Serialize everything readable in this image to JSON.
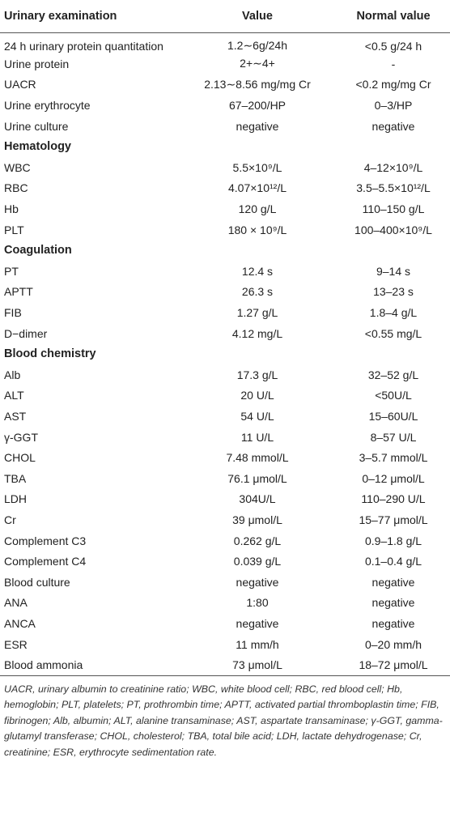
{
  "table": {
    "columns": [
      "Urinary examination",
      "Value",
      "Normal value"
    ],
    "rows": [
      [
        "24 h urinary protein quantitation",
        "1.2∼6g/24h",
        "<0.5 g/24 h"
      ],
      [
        "Urine protein",
        "2+∼4+",
        "-"
      ],
      [
        "UACR",
        "2.13∼8.56 mg/mg Cr",
        "<0.2 mg/mg Cr"
      ],
      [
        "Urine erythrocyte",
        "67–200/HP",
        "0–3/HP"
      ],
      [
        "Urine culture",
        "negative",
        "negative"
      ],
      [
        "Hematology"
      ],
      [
        "WBC",
        "5.5×10⁹/L",
        "4–12×10⁹/L"
      ],
      [
        "RBC",
        "4.07×10¹²/L",
        "3.5–5.5×10¹²/L"
      ],
      [
        "Hb",
        "120 g/L",
        "110–150 g/L"
      ],
      [
        "PLT",
        "180 × 10⁹/L",
        "100–400×10⁹/L"
      ],
      [
        "Coagulation"
      ],
      [
        "PT",
        "12.4 s",
        "9–14 s"
      ],
      [
        "APTT",
        "26.3 s",
        "13–23 s"
      ],
      [
        "FIB",
        "1.27 g/L",
        "1.8–4 g/L"
      ],
      [
        "D−dimer",
        "4.12 mg/L",
        "<0.55 mg/L"
      ],
      [
        "Blood chemistry"
      ],
      [
        "Alb",
        "17.3 g/L",
        "32–52 g/L"
      ],
      [
        "ALT",
        "20 U/L",
        "<50U/L"
      ],
      [
        "AST",
        "54 U/L",
        "15–60U/L"
      ],
      [
        "γ-GGT",
        "11 U/L",
        "8–57 U/L"
      ],
      [
        "CHOL",
        "7.48 mmol/L",
        "3–5.7 mmol/L"
      ],
      [
        "TBA",
        "76.1 μmol/L",
        "0–12 μmol/L"
      ],
      [
        "LDH",
        "304U/L",
        "110–290 U/L"
      ],
      [
        "Cr",
        "39 μmol/L",
        "15–77 μmol/L"
      ],
      [
        "Complement C3",
        "0.262 g/L",
        "0.9–1.8 g/L"
      ],
      [
        "Complement C4",
        "0.039 g/L",
        "0.1–0.4 g/L"
      ],
      [
        "Blood culture",
        "negative",
        "negative"
      ],
      [
        "ANA",
        "1:80",
        "negative"
      ],
      [
        "ANCA",
        "negative",
        "negative"
      ],
      [
        "ESR",
        "11 mm/h",
        "0–20 mm/h"
      ],
      [
        "Blood ammonia",
        "73 μmol/L",
        "18–72 μmol/L"
      ]
    ],
    "footnote": "UACR, urinary albumin to creatinine ratio; WBC, white blood cell; RBC, red blood cell; Hb, hemoglobin; PLT, platelets; PT, prothrombin time; APTT, activated partial thromboplastin time; FIB, fibrinogen; Alb, albumin; ALT, alanine transaminase; AST, aspartate transaminase; γ-GGT, gamma-glutamyl transferase; CHOL, cholesterol; TBA, total bile acid; LDH, lactate dehydrogenase; Cr, creatinine; ESR, erythrocyte sedimentation rate."
  }
}
